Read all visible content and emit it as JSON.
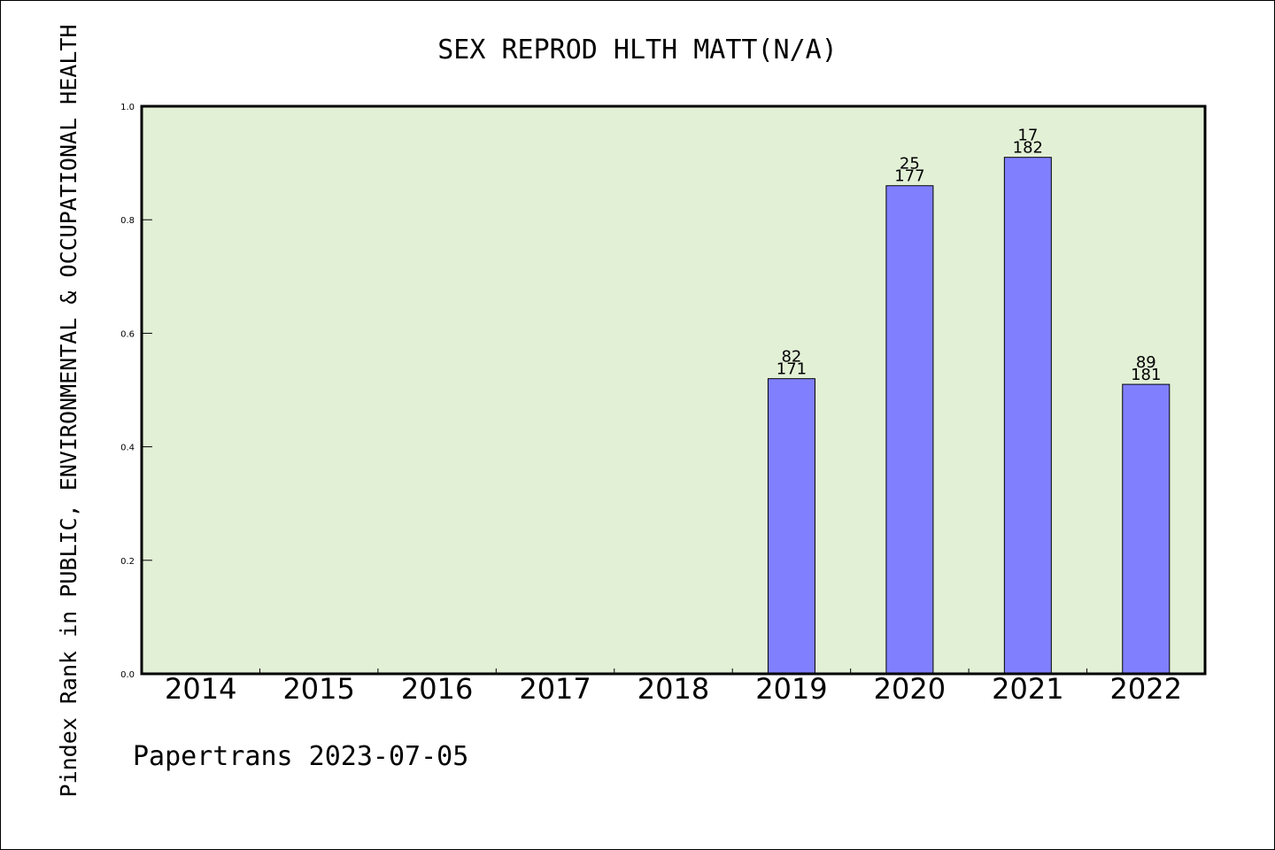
{
  "chart_data": {
    "type": "bar",
    "title": "SEX REPROD HLTH MATT(N/A)",
    "ylabel": "Pindex Rank in PUBLIC, ENVIRONMENTAL & OCCUPATIONAL HEALTH",
    "xlabel": "",
    "footer": "Papertrans 2023-07-05",
    "ylim": [
      0,
      1.0
    ],
    "yticks": [
      "0.0",
      "0.2",
      "0.4",
      "0.6",
      "0.8",
      "1.0"
    ],
    "categories": [
      "2014",
      "2015",
      "2016",
      "2017",
      "2018",
      "2019",
      "2020",
      "2021",
      "2022"
    ],
    "values": [
      null,
      null,
      null,
      null,
      null,
      0.52,
      0.86,
      0.91,
      0.51
    ],
    "labels_top": [
      "",
      "",
      "",
      "",
      "",
      "82",
      "25",
      "17",
      "89"
    ],
    "labels_bottom": [
      "",
      "",
      "",
      "",
      "",
      "171",
      "177",
      "182",
      "181"
    ],
    "grid": false,
    "colors": {
      "plot_bg": "#e2f0d6",
      "bar": "#8080ff",
      "bar_edge": "#000000"
    }
  }
}
